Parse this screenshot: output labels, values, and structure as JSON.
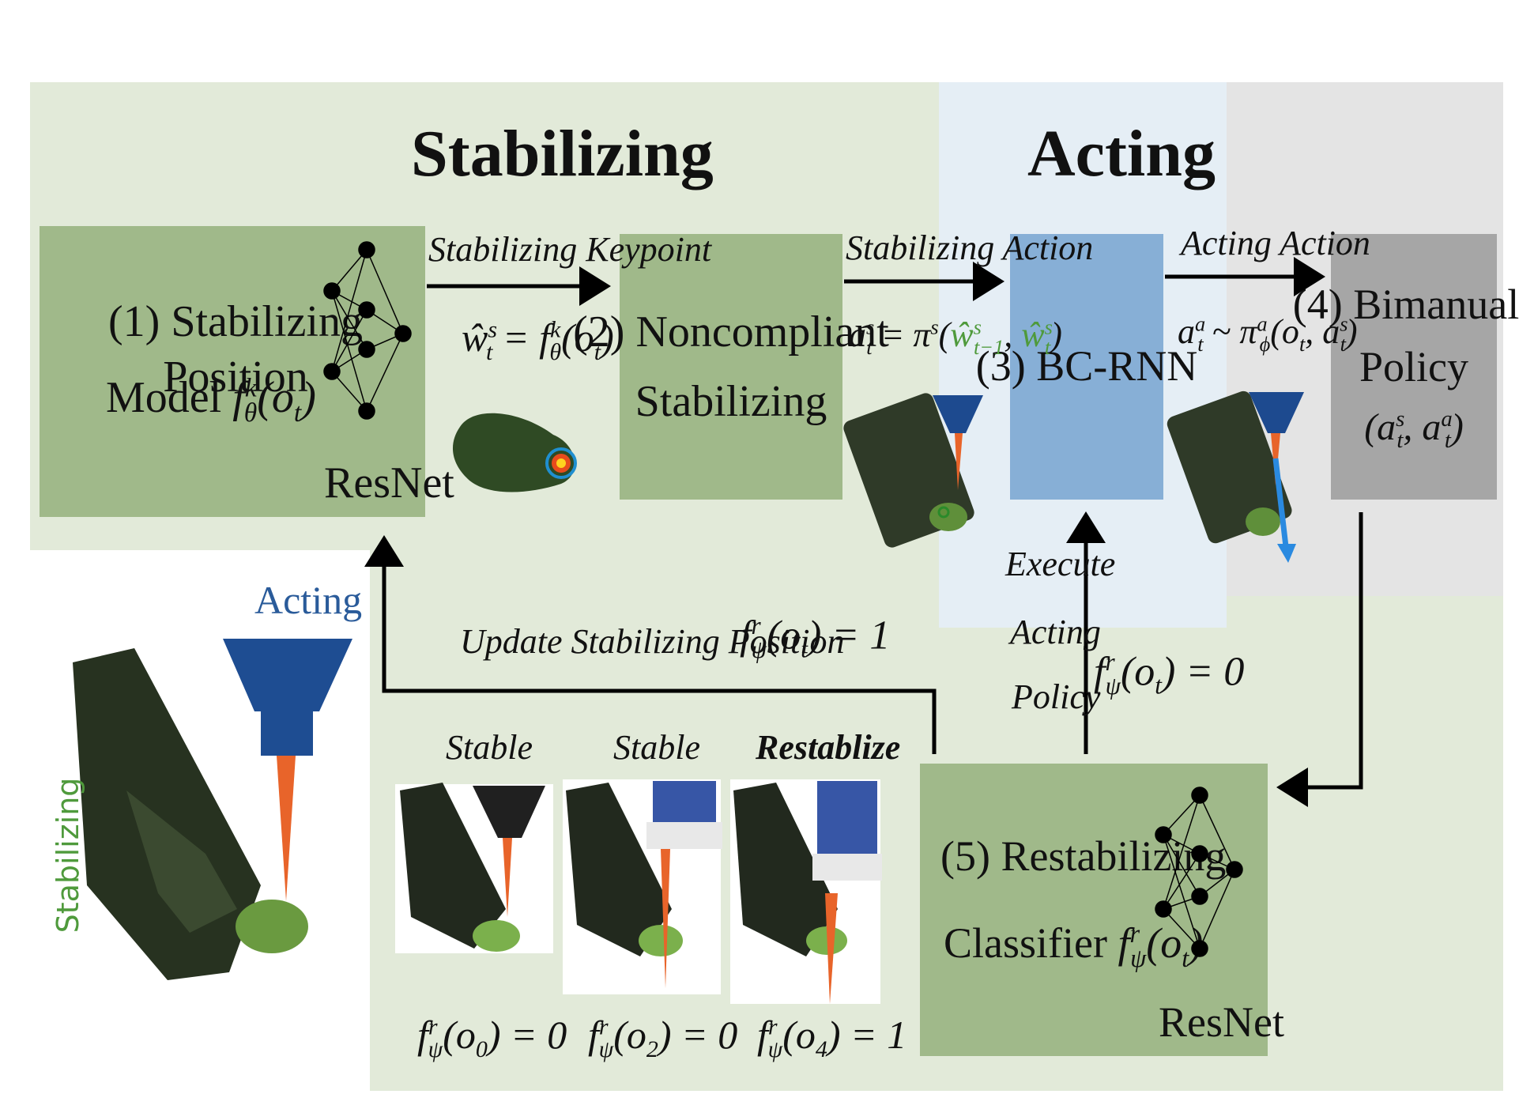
{
  "headings": {
    "stabilizing": "Stabilizing",
    "acting": "Acting"
  },
  "boxes": {
    "b1_line1": "(1) Stabilizing Position",
    "b1_line2": "Model",
    "b1_func": "f",
    "b1_func_sup": "k",
    "b1_func_sub": "θ",
    "b1_func_arg": "(o",
    "b1_func_arg_sub": "t",
    "b1_func_close": ")",
    "b1_net": "ResNet",
    "b2_line1": "(2) Noncompliant",
    "b2_line2": "Stabilizing",
    "b3_label": "(3) BC-RNN",
    "b4_line1": "(4) Bimanual",
    "b4_line2": "Policy",
    "b4_line3": "(a",
    "b4_s": "s",
    "b4_t1": "t",
    "b4_comma": ", a",
    "b4_a": "a",
    "b4_t2": "t",
    "b4_close": ")",
    "b5_line1": "(5) Restabilizing",
    "b5_line2": "Classifier",
    "b5_net": "ResNet"
  },
  "arrows": {
    "keypoint_label": "Stabilizing Keypoint",
    "stab_action_label": "Stabilizing Action",
    "acting_action_label": "Acting Action",
    "update_label": "Update Stabilizing Position",
    "execute_1": "Execute",
    "execute_2": "Acting",
    "execute_3": "Policy"
  },
  "equations": {
    "update_eq_rhs": ") = 1",
    "execute_eq_rhs": ") = 0",
    "stab_action_eq": "a",
    "acting_action_eq": "a"
  },
  "inset": {
    "acting_label": "Acting",
    "stabilizing_label": "Stabilizing"
  },
  "samples": [
    {
      "title": "Stable",
      "bold": false,
      "eq_arg": "0",
      "eq_val": ") = 0"
    },
    {
      "title": "Stable",
      "bold": false,
      "eq_arg": "2",
      "eq_val": ") = 0"
    },
    {
      "title": "Restablize",
      "bold": true,
      "eq_arg": "4",
      "eq_val": ") = 1"
    }
  ],
  "colors": {
    "green_bg": "#e2ead9",
    "blue_bg": "#e5eef5",
    "gray_bg": "#e4e4e4",
    "green_box": "#a0b98a",
    "blue_box": "#87afd6",
    "gray_box": "#a6a6a6",
    "stab_green": "#4f9a3c",
    "act_blue": "#2a5b9a"
  }
}
